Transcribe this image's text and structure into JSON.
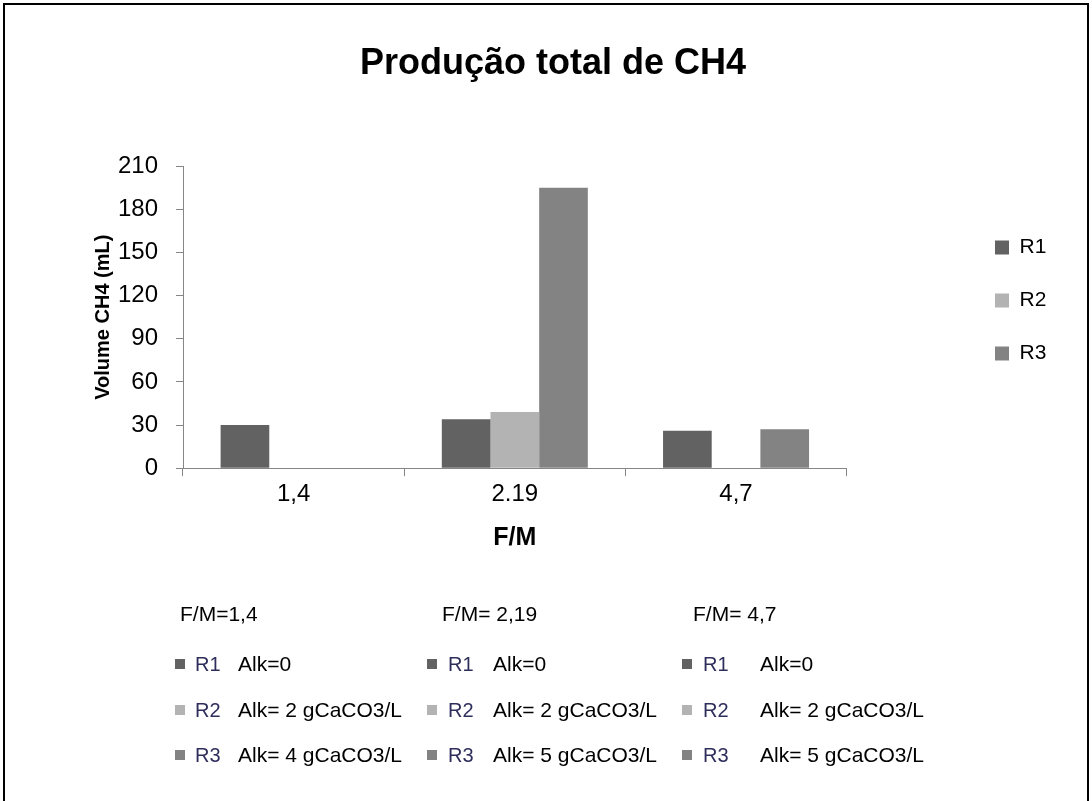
{
  "chart_data": {
    "type": "bar",
    "title": "Produção total de CH4",
    "xlabel": "F/M",
    "ylabel": "Volume CH4 (mL)",
    "categories": [
      "1,4",
      "2.19",
      "4,7"
    ],
    "series": [
      {
        "name": "R1",
        "color": "#626262",
        "values": [
          30,
          34,
          26
        ]
      },
      {
        "name": "R2",
        "color": "#b3b3b3",
        "values": [
          0,
          39,
          0
        ]
      },
      {
        "name": "R3",
        "color": "#838383",
        "values": [
          0,
          195,
          27
        ]
      }
    ],
    "ylim": [
      0,
      210
    ],
    "yticks": [
      0,
      30,
      60,
      90,
      120,
      150,
      180,
      210
    ],
    "grid": false,
    "legend": "right",
    "annotations": [
      "F/M=1,4",
      "R1",
      "Alk=0",
      "R2",
      "Alk= 2 gCaCO3/L",
      "R3",
      "Alk= 4 gCaCO3/L",
      "F/M= 2,19",
      "R1",
      "Alk=0",
      "R2",
      "Alk= 2 gCaCO3/L",
      "R3",
      "Alk= 5 gCaCO3/L",
      "F/M= 4,7",
      "R1",
      "Alk=0",
      "R2",
      "Alk= 2 gCaCO3/L",
      "R3",
      "Alk= 5 gCaCO3/L"
    ]
  }
}
